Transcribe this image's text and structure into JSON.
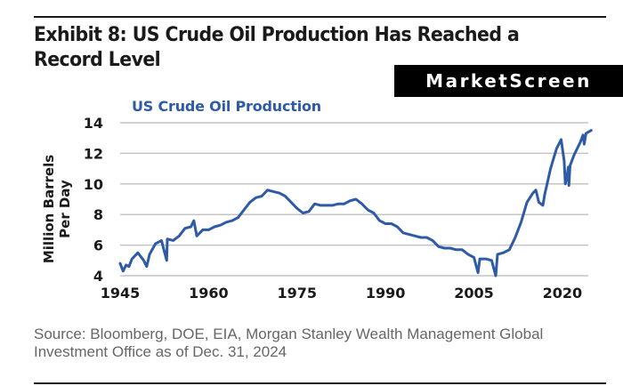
{
  "header": {
    "title": "Exhibit 8: US Crude Oil Production Has Reached a Record Level",
    "logo": "MarketScreen"
  },
  "footer": {
    "source": "Source: Bloomberg, DOE, EIA, Morgan Stanley Wealth Management Global Investment Office as of Dec. 31, 2024"
  },
  "chart_data": {
    "type": "line",
    "title": "US Crude Oil Production",
    "xlabel": "",
    "ylabel": "Million Barrels Per Day",
    "xlim": [
      1945,
      2025
    ],
    "ylim": [
      4,
      14
    ],
    "x_ticks": [
      1945,
      1960,
      1975,
      1990,
      2005,
      2020
    ],
    "y_ticks": [
      4,
      6,
      8,
      10,
      12,
      14
    ],
    "grid": "horizontal",
    "legend": "none",
    "series": [
      {
        "name": "US Crude Oil Production",
        "color": "#2e5aa6",
        "x": [
          1945,
          1945.5,
          1946,
          1946.5,
          1947,
          1948,
          1949,
          1949.5,
          1950,
          1951,
          1952,
          1952.9,
          1953,
          1954,
          1955,
          1956,
          1957,
          1957.5,
          1958,
          1959,
          1960,
          1961,
          1962,
          1963,
          1964,
          1965,
          1966,
          1967,
          1968,
          1969,
          1970,
          1971,
          1972,
          1973,
          1974,
          1975,
          1976,
          1977,
          1978,
          1979,
          1980,
          1981,
          1982,
          1983,
          1984,
          1985,
          1986,
          1987,
          1988,
          1989,
          1990,
          1991,
          1992,
          1993,
          1994,
          1995,
          1996,
          1997,
          1998,
          1999,
          2000,
          2001,
          2002,
          2003,
          2004,
          2005,
          2005.7,
          2006,
          2007,
          2008,
          2008.7,
          2009,
          2010,
          2011,
          2012,
          2013,
          2014,
          2015,
          2015.5,
          2016,
          2016.7,
          2017,
          2018,
          2019,
          2019.8,
          2020.3,
          2020.5,
          2020.8,
          2021,
          2021.1,
          2021.3,
          2022,
          2023,
          2023.5,
          2023.7,
          2024,
          2024.9
        ],
        "y": [
          4.8,
          4.3,
          4.7,
          4.6,
          5.1,
          5.5,
          5.0,
          4.6,
          5.4,
          6.1,
          6.3,
          5.0,
          6.4,
          6.3,
          6.6,
          7.1,
          7.2,
          7.6,
          6.6,
          7.0,
          7.0,
          7.2,
          7.3,
          7.5,
          7.6,
          7.8,
          8.3,
          8.8,
          9.1,
          9.2,
          9.6,
          9.5,
          9.4,
          9.2,
          8.8,
          8.4,
          8.1,
          8.2,
          8.7,
          8.6,
          8.6,
          8.6,
          8.7,
          8.7,
          8.9,
          9.0,
          8.7,
          8.3,
          8.1,
          7.6,
          7.4,
          7.4,
          7.2,
          6.8,
          6.7,
          6.6,
          6.5,
          6.5,
          6.3,
          5.9,
          5.8,
          5.8,
          5.7,
          5.7,
          5.4,
          5.2,
          4.2,
          5.1,
          5.1,
          5.0,
          4.0,
          5.4,
          5.5,
          5.7,
          6.5,
          7.5,
          8.8,
          9.4,
          9.6,
          8.8,
          8.6,
          9.3,
          11.0,
          12.3,
          12.9,
          11.5,
          10.0,
          10.5,
          11.1,
          9.9,
          11.2,
          11.9,
          12.7,
          13.2,
          12.6,
          13.3,
          13.5
        ]
      }
    ]
  }
}
